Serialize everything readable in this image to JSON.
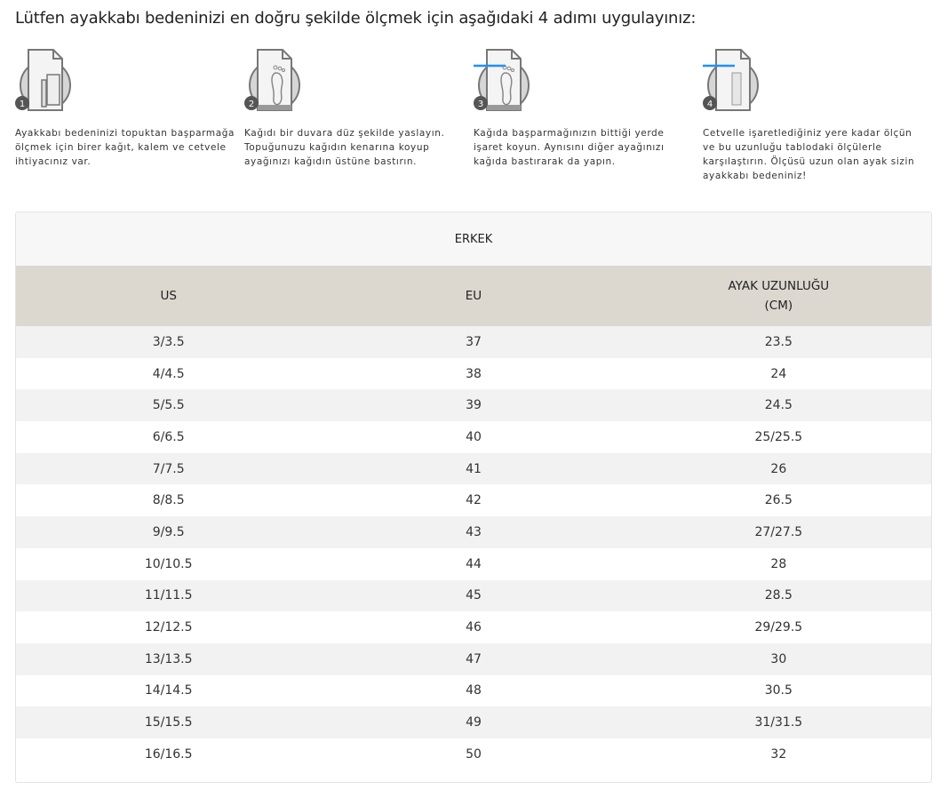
{
  "heading": "Lütfen ayakkabı bedeninizi en doğru şekilde ölçmek için aşağıdaki 4 adımı uygulayınız:",
  "steps": [
    {
      "number": "1",
      "icon": "paper-pencil-ruler-icon",
      "text": "Ayakkabı bedeninizi topuktan başparmağa ölçmek için birer kağıt, kalem ve cetvele ihtiyacınız var."
    },
    {
      "number": "2",
      "icon": "footprint-on-paper-icon",
      "text": "Kağıdı bir duvara düz şekilde yaslayın. Topuğunuzu kağıdın kenarına koyup ayağınızı kağıdın üstüne bastırın."
    },
    {
      "number": "3",
      "icon": "footprint-mark-icon",
      "text": "Kağıda başparmağınızın bittiği yerde işaret koyun. Aynısını diğer ayağınızı kağıda bastırarak da yapın."
    },
    {
      "number": "4",
      "icon": "ruler-measure-icon",
      "text": "Cetvelle işaretlediğiniz yere kadar ölçün ve bu uzunluğu tablodaki ölçülerle karşılaştırın. Ölçüsü uzun olan ayak sizin ayakkabı bedeniniz!"
    }
  ],
  "accent": "#1e90ff",
  "table": {
    "title": "ERKEK",
    "headers": [
      "US",
      "EU",
      "AYAK UZUNLUĞU\n(CM)"
    ],
    "rows": [
      [
        "3/3.5",
        "37",
        "23.5"
      ],
      [
        "4/4.5",
        "38",
        "24"
      ],
      [
        "5/5.5",
        "39",
        "24.5"
      ],
      [
        "6/6.5",
        "40",
        "25/25.5"
      ],
      [
        "7/7.5",
        "41",
        "26"
      ],
      [
        "8/8.5",
        "42",
        "26.5"
      ],
      [
        "9/9.5",
        "43",
        "27/27.5"
      ],
      [
        "10/10.5",
        "44",
        "28"
      ],
      [
        "11/11.5",
        "45",
        "28.5"
      ],
      [
        "12/12.5",
        "46",
        "29/29.5"
      ],
      [
        "13/13.5",
        "47",
        "30"
      ],
      [
        "14/14.5",
        "48",
        "30.5"
      ],
      [
        "15/15.5",
        "49",
        "31/31.5"
      ],
      [
        "16/16.5",
        "50",
        "32"
      ]
    ]
  }
}
